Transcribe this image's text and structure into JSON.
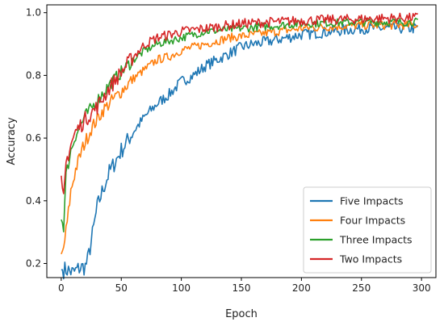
{
  "chart_data": {
    "type": "line",
    "title": "",
    "xlabel": "Epoch",
    "ylabel": "Accuracy",
    "xlim": [
      -12,
      312
    ],
    "ylim": [
      0.155,
      1.025
    ],
    "xticks": [
      0,
      50,
      100,
      150,
      200,
      250,
      300
    ],
    "yticks": [
      0.2,
      0.4,
      0.6,
      0.8,
      1.0
    ],
    "xtick_labels": [
      "0",
      "50",
      "100",
      "150",
      "200",
      "250",
      "300"
    ],
    "ytick_labels": [
      "0.2",
      "0.4",
      "0.6",
      "0.8",
      "1.0"
    ],
    "grid": false,
    "legend_position": "lower-right",
    "noise_seed": 7,
    "series": [
      {
        "name": "Five Impacts",
        "color": "#1f77b4",
        "noise": 0.018,
        "points": [
          [
            0,
            0.18
          ],
          [
            5,
            0.18
          ],
          [
            10,
            0.17
          ],
          [
            15,
            0.185
          ],
          [
            20,
            0.19
          ],
          [
            22,
            0.21
          ],
          [
            25,
            0.27
          ],
          [
            30,
            0.38
          ],
          [
            35,
            0.44
          ],
          [
            40,
            0.49
          ],
          [
            50,
            0.56
          ],
          [
            60,
            0.62
          ],
          [
            70,
            0.67
          ],
          [
            80,
            0.71
          ],
          [
            90,
            0.74
          ],
          [
            100,
            0.78
          ],
          [
            110,
            0.8
          ],
          [
            120,
            0.83
          ],
          [
            130,
            0.85
          ],
          [
            140,
            0.87
          ],
          [
            150,
            0.89
          ],
          [
            160,
            0.9
          ],
          [
            175,
            0.91
          ],
          [
            200,
            0.93
          ],
          [
            225,
            0.94
          ],
          [
            250,
            0.95
          ],
          [
            275,
            0.95
          ],
          [
            297,
            0.95
          ]
        ]
      },
      {
        "name": "Four Impacts",
        "color": "#ff7f0e",
        "noise": 0.014,
        "points": [
          [
            0,
            0.23
          ],
          [
            2,
            0.25
          ],
          [
            5,
            0.33
          ],
          [
            8,
            0.43
          ],
          [
            12,
            0.5
          ],
          [
            18,
            0.57
          ],
          [
            25,
            0.63
          ],
          [
            35,
            0.69
          ],
          [
            50,
            0.75
          ],
          [
            60,
            0.79
          ],
          [
            70,
            0.82
          ],
          [
            80,
            0.85
          ],
          [
            90,
            0.86
          ],
          [
            100,
            0.88
          ],
          [
            120,
            0.9
          ],
          [
            140,
            0.92
          ],
          [
            160,
            0.93
          ],
          [
            180,
            0.94
          ],
          [
            200,
            0.95
          ],
          [
            225,
            0.955
          ],
          [
            250,
            0.96
          ],
          [
            275,
            0.96
          ],
          [
            297,
            0.96
          ]
        ]
      },
      {
        "name": "Three Impacts",
        "color": "#2ca02c",
        "noise": 0.013,
        "points": [
          [
            0,
            0.34
          ],
          [
            2,
            0.32
          ],
          [
            4,
            0.48
          ],
          [
            8,
            0.56
          ],
          [
            12,
            0.61
          ],
          [
            20,
            0.67
          ],
          [
            30,
            0.72
          ],
          [
            40,
            0.77
          ],
          [
            50,
            0.81
          ],
          [
            60,
            0.85
          ],
          [
            70,
            0.88
          ],
          [
            80,
            0.9
          ],
          [
            100,
            0.92
          ],
          [
            120,
            0.94
          ],
          [
            150,
            0.95
          ],
          [
            200,
            0.965
          ],
          [
            250,
            0.97
          ],
          [
            297,
            0.97
          ]
        ]
      },
      {
        "name": "Two Impacts",
        "color": "#d62728",
        "noise": 0.016,
        "points": [
          [
            0,
            0.48
          ],
          [
            2,
            0.4
          ],
          [
            4,
            0.52
          ],
          [
            8,
            0.58
          ],
          [
            12,
            0.62
          ],
          [
            20,
            0.66
          ],
          [
            30,
            0.7
          ],
          [
            40,
            0.76
          ],
          [
            50,
            0.81
          ],
          [
            60,
            0.86
          ],
          [
            70,
            0.9
          ],
          [
            80,
            0.92
          ],
          [
            100,
            0.94
          ],
          [
            120,
            0.95
          ],
          [
            150,
            0.965
          ],
          [
            200,
            0.975
          ],
          [
            250,
            0.98
          ],
          [
            297,
            0.985
          ]
        ]
      }
    ]
  }
}
